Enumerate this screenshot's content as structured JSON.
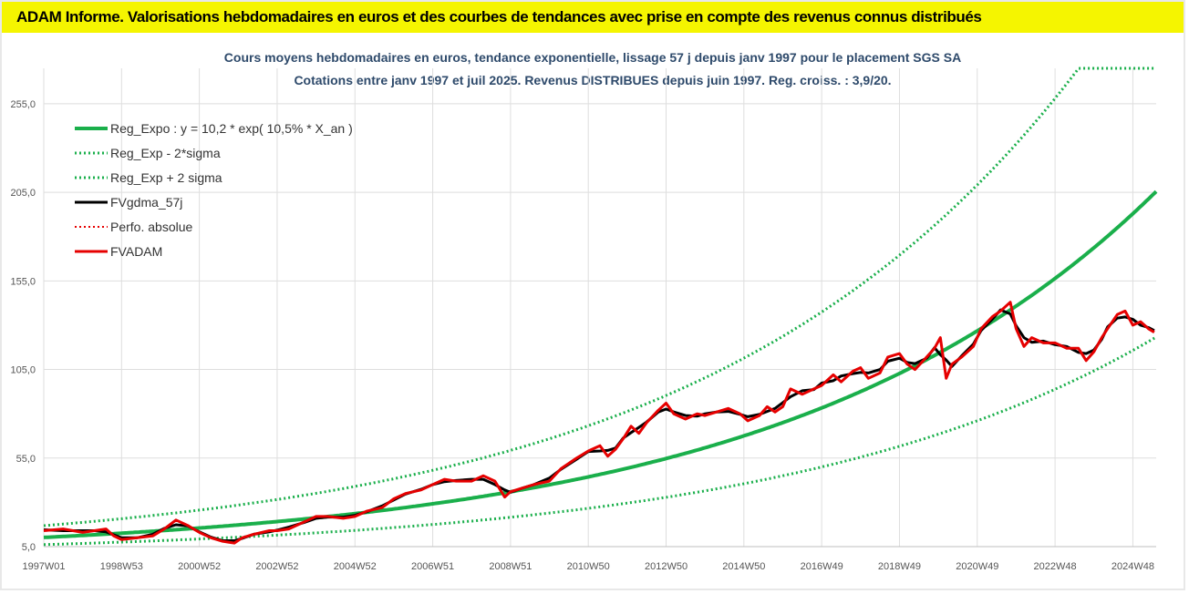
{
  "banner": {
    "title": "ADAM Informe. Valorisations hebdomadaires en euros et des courbes de tendances avec prise en compte des revenus connus distribués"
  },
  "chart_data": {
    "type": "line",
    "title": "Cours moyens hebdomadaires en euros, tendance exponentielle, lissage 57 j depuis janv 1997  pour le placement SGS SA",
    "subtitle": "Cotations entre janv 1997 et juil 2025. Revenus DISTRIBUES depuis juin 1997. Reg. croiss. : 3,9/20.",
    "xlabel": "",
    "ylabel": "",
    "ylim": [
      5,
      275
    ],
    "yticks": [
      "5,0",
      "55,0",
      "105,0",
      "155,0",
      "205,0",
      "255,0"
    ],
    "xlim": [
      1997.0,
      2025.6
    ],
    "x_ticks": [
      {
        "label": "1997W01",
        "x": 1997.0
      },
      {
        "label": "1998W53",
        "x": 1999.0
      },
      {
        "label": "2000W52",
        "x": 2001.0
      },
      {
        "label": "2002W52",
        "x": 2003.0
      },
      {
        "label": "2004W52",
        "x": 2005.0
      },
      {
        "label": "2006W51",
        "x": 2007.0
      },
      {
        "label": "2008W51",
        "x": 2009.0
      },
      {
        "label": "2010W50",
        "x": 2011.0
      },
      {
        "label": "2012W50",
        "x": 2013.0
      },
      {
        "label": "2014W50",
        "x": 2015.0
      },
      {
        "label": "2016W49",
        "x": 2017.0
      },
      {
        "label": "2018W49",
        "x": 2019.0
      },
      {
        "label": "2020W49",
        "x": 2021.0
      },
      {
        "label": "2022W48",
        "x": 2023.0
      },
      {
        "label": "2024W48",
        "x": 2025.0
      }
    ],
    "grid": true,
    "legend_position": "top-left",
    "regression": {
      "a": 10.2,
      "rate": 0.105,
      "x0": 1997.0,
      "lower_factor": 0.6,
      "upper_factor": 1.65
    },
    "series": [
      {
        "name": "Reg_Expo : y = 10,2 * exp( 10,5% *  X_an )",
        "color": "#1aaf4b",
        "style": "solid",
        "width": 4
      },
      {
        "name": "Reg_Exp - 2*sigma",
        "color": "#1aaf4b",
        "style": "dotted",
        "width": 3
      },
      {
        "name": "Reg_Exp + 2 sigma",
        "color": "#1aaf4b",
        "style": "dotted",
        "width": 3
      },
      {
        "name": "FVgdma_57j",
        "color": "#000000",
        "style": "solid",
        "width": 3
      },
      {
        "name": "Perfo. absolue",
        "color": "#e60000",
        "style": "dotted",
        "width": 2
      },
      {
        "name": "FVADAM",
        "color": "#e60000",
        "style": "solid",
        "width": 3,
        "points": [
          [
            1997.0,
            14
          ],
          [
            1997.5,
            15
          ],
          [
            1998.0,
            13
          ],
          [
            1998.3,
            14
          ],
          [
            1998.6,
            15
          ],
          [
            1998.8,
            11
          ],
          [
            1999.0,
            9
          ],
          [
            1999.4,
            10
          ],
          [
            1999.8,
            11
          ],
          [
            2000.1,
            15
          ],
          [
            2000.4,
            20
          ],
          [
            2000.7,
            17
          ],
          [
            2001.0,
            13
          ],
          [
            2001.3,
            10
          ],
          [
            2001.6,
            8
          ],
          [
            2001.9,
            7
          ],
          [
            2002.1,
            10
          ],
          [
            2002.4,
            12
          ],
          [
            2002.8,
            14
          ],
          [
            2003.0,
            14
          ],
          [
            2003.3,
            15
          ],
          [
            2003.7,
            19
          ],
          [
            2004.0,
            22
          ],
          [
            2004.3,
            22
          ],
          [
            2004.7,
            21
          ],
          [
            2005.0,
            22
          ],
          [
            2005.3,
            25
          ],
          [
            2005.7,
            27
          ],
          [
            2006.0,
            32
          ],
          [
            2006.3,
            35
          ],
          [
            2006.7,
            37
          ],
          [
            2007.0,
            40
          ],
          [
            2007.3,
            43
          ],
          [
            2007.6,
            42
          ],
          [
            2008.0,
            42
          ],
          [
            2008.3,
            45
          ],
          [
            2008.6,
            42
          ],
          [
            2008.85,
            33
          ],
          [
            2009.0,
            36
          ],
          [
            2009.3,
            38
          ],
          [
            2009.6,
            40
          ],
          [
            2010.0,
            42
          ],
          [
            2010.3,
            49
          ],
          [
            2010.7,
            55
          ],
          [
            2011.0,
            59
          ],
          [
            2011.3,
            62
          ],
          [
            2011.5,
            56
          ],
          [
            2011.7,
            60
          ],
          [
            2011.9,
            66
          ],
          [
            2012.1,
            73
          ],
          [
            2012.3,
            69
          ],
          [
            2012.5,
            75
          ],
          [
            2012.8,
            82
          ],
          [
            2013.0,
            86
          ],
          [
            2013.2,
            80
          ],
          [
            2013.5,
            77
          ],
          [
            2013.8,
            80
          ],
          [
            2014.0,
            79
          ],
          [
            2014.3,
            81
          ],
          [
            2014.6,
            83
          ],
          [
            2014.9,
            80
          ],
          [
            2015.1,
            76
          ],
          [
            2015.4,
            79
          ],
          [
            2015.6,
            84
          ],
          [
            2015.8,
            81
          ],
          [
            2016.0,
            84
          ],
          [
            2016.2,
            94
          ],
          [
            2016.5,
            91
          ],
          [
            2016.8,
            94
          ],
          [
            2017.0,
            96
          ],
          [
            2017.3,
            102
          ],
          [
            2017.5,
            98
          ],
          [
            2017.8,
            104
          ],
          [
            2018.0,
            106
          ],
          [
            2018.2,
            100
          ],
          [
            2018.5,
            103
          ],
          [
            2018.7,
            112
          ],
          [
            2019.0,
            114
          ],
          [
            2019.2,
            108
          ],
          [
            2019.4,
            105
          ],
          [
            2019.7,
            112
          ],
          [
            2019.9,
            117
          ],
          [
            2020.05,
            123
          ],
          [
            2020.2,
            100
          ],
          [
            2020.35,
            108
          ],
          [
            2020.6,
            112
          ],
          [
            2020.9,
            118
          ],
          [
            2021.1,
            128
          ],
          [
            2021.4,
            135
          ],
          [
            2021.6,
            138
          ],
          [
            2021.85,
            143
          ],
          [
            2022.0,
            128
          ],
          [
            2022.2,
            118
          ],
          [
            2022.4,
            123
          ],
          [
            2022.7,
            120
          ],
          [
            2023.0,
            120
          ],
          [
            2023.3,
            117
          ],
          [
            2023.6,
            117
          ],
          [
            2023.8,
            110
          ],
          [
            2024.0,
            115
          ],
          [
            2024.2,
            123
          ],
          [
            2024.35,
            128
          ],
          [
            2024.6,
            136
          ],
          [
            2024.8,
            138
          ],
          [
            2025.0,
            130
          ],
          [
            2025.2,
            132
          ],
          [
            2025.4,
            128
          ],
          [
            2025.55,
            126
          ]
        ]
      }
    ]
  }
}
